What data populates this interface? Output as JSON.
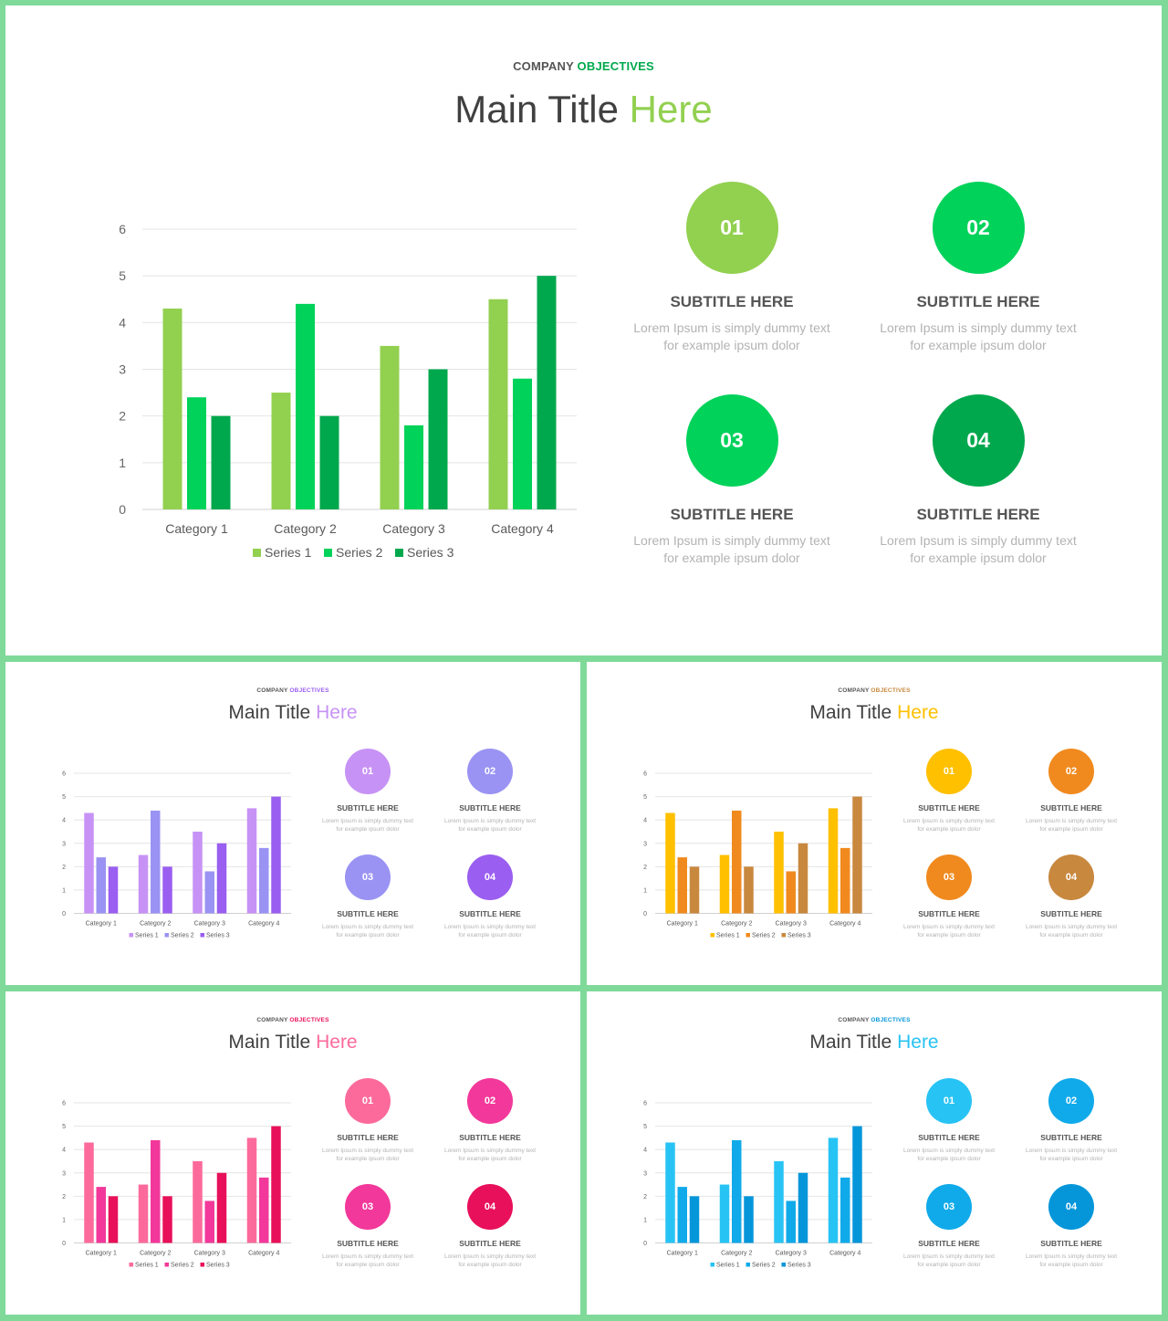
{
  "slides": [
    {
      "theme": "green",
      "accent": "#92d050",
      "kicker": {
        "prefix": "COMPANY",
        "highlight": "OBJECTIVES"
      },
      "title": {
        "main": "Main Title",
        "highlight": "Here"
      },
      "series_colors": [
        "#92d050",
        "#00d25a",
        "#00a84d"
      ],
      "circle_colors": [
        "#92d050",
        "#00d25a",
        "#00d25a",
        "#00a84d"
      ]
    },
    {
      "theme": "purple",
      "accent": "#c792f5",
      "kicker": {
        "prefix": "COMPANY",
        "highlight": "OBJECTIVES"
      },
      "title": {
        "main": "Main Title",
        "highlight": "Here"
      },
      "series_colors": [
        "#c792f5",
        "#9a93f3",
        "#9a5ef0"
      ],
      "circle_colors": [
        "#c792f5",
        "#9a93f3",
        "#9a93f3",
        "#9a5ef0"
      ]
    },
    {
      "theme": "orange",
      "accent": "#ffc000",
      "kicker": {
        "prefix": "COMPANY",
        "highlight": "OBJECTIVES"
      },
      "title": {
        "main": "Main Title",
        "highlight": "Here"
      },
      "series_colors": [
        "#ffc000",
        "#f08a1e",
        "#c8883e"
      ],
      "circle_colors": [
        "#ffc000",
        "#f08a1e",
        "#f08a1e",
        "#c8883e"
      ]
    },
    {
      "theme": "pink",
      "accent": "#fc6a9c",
      "kicker": {
        "prefix": "COMPANY",
        "highlight": "OBJECTIVES"
      },
      "title": {
        "main": "Main Title",
        "highlight": "Here"
      },
      "series_colors": [
        "#fc6a9c",
        "#f2389a",
        "#e8105a"
      ],
      "circle_colors": [
        "#fc6a9c",
        "#f2389a",
        "#f2389a",
        "#e8105a"
      ]
    },
    {
      "theme": "blue",
      "accent": "#28c3f5",
      "kicker": {
        "prefix": "COMPANY",
        "highlight": "OBJECTIVES"
      },
      "title": {
        "main": "Main Title",
        "highlight": "Here"
      },
      "series_colors": [
        "#28c3f5",
        "#10aaea",
        "#0596da"
      ],
      "circle_colors": [
        "#28c3f5",
        "#10aaea",
        "#10aaea",
        "#0596da"
      ]
    }
  ],
  "items": [
    {
      "number": "01",
      "subtitle": "SUBTITLE HERE",
      "line1": "Lorem Ipsum is simply dummy text",
      "line2": "for example ipsum dolor"
    },
    {
      "number": "02",
      "subtitle": "SUBTITLE HERE",
      "line1": "Lorem Ipsum is simply dummy text",
      "line2": "for example ipsum dolor"
    },
    {
      "number": "03",
      "subtitle": "SUBTITLE HERE",
      "line1": "Lorem Ipsum is simply dummy text",
      "line2": "for example ipsum dolor"
    },
    {
      "number": "04",
      "subtitle": "SUBTITLE HERE",
      "line1": "Lorem Ipsum is simply dummy text",
      "line2": "for example ipsum dolor"
    }
  ],
  "chart_data": {
    "type": "bar",
    "categories": [
      "Category 1",
      "Category 2",
      "Category 3",
      "Category 4"
    ],
    "series": [
      {
        "name": "Series 1",
        "values": [
          4.3,
          2.5,
          3.5,
          4.5
        ]
      },
      {
        "name": "Series 2",
        "values": [
          2.4,
          4.4,
          1.8,
          2.8
        ]
      },
      {
        "name": "Series 3",
        "values": [
          2,
          2,
          3,
          5
        ]
      }
    ],
    "ylim": [
      0,
      6
    ],
    "yticks": [
      "0",
      "1",
      "2",
      "3",
      "4",
      "5",
      "6"
    ],
    "grid": true,
    "legend": "bottom"
  }
}
